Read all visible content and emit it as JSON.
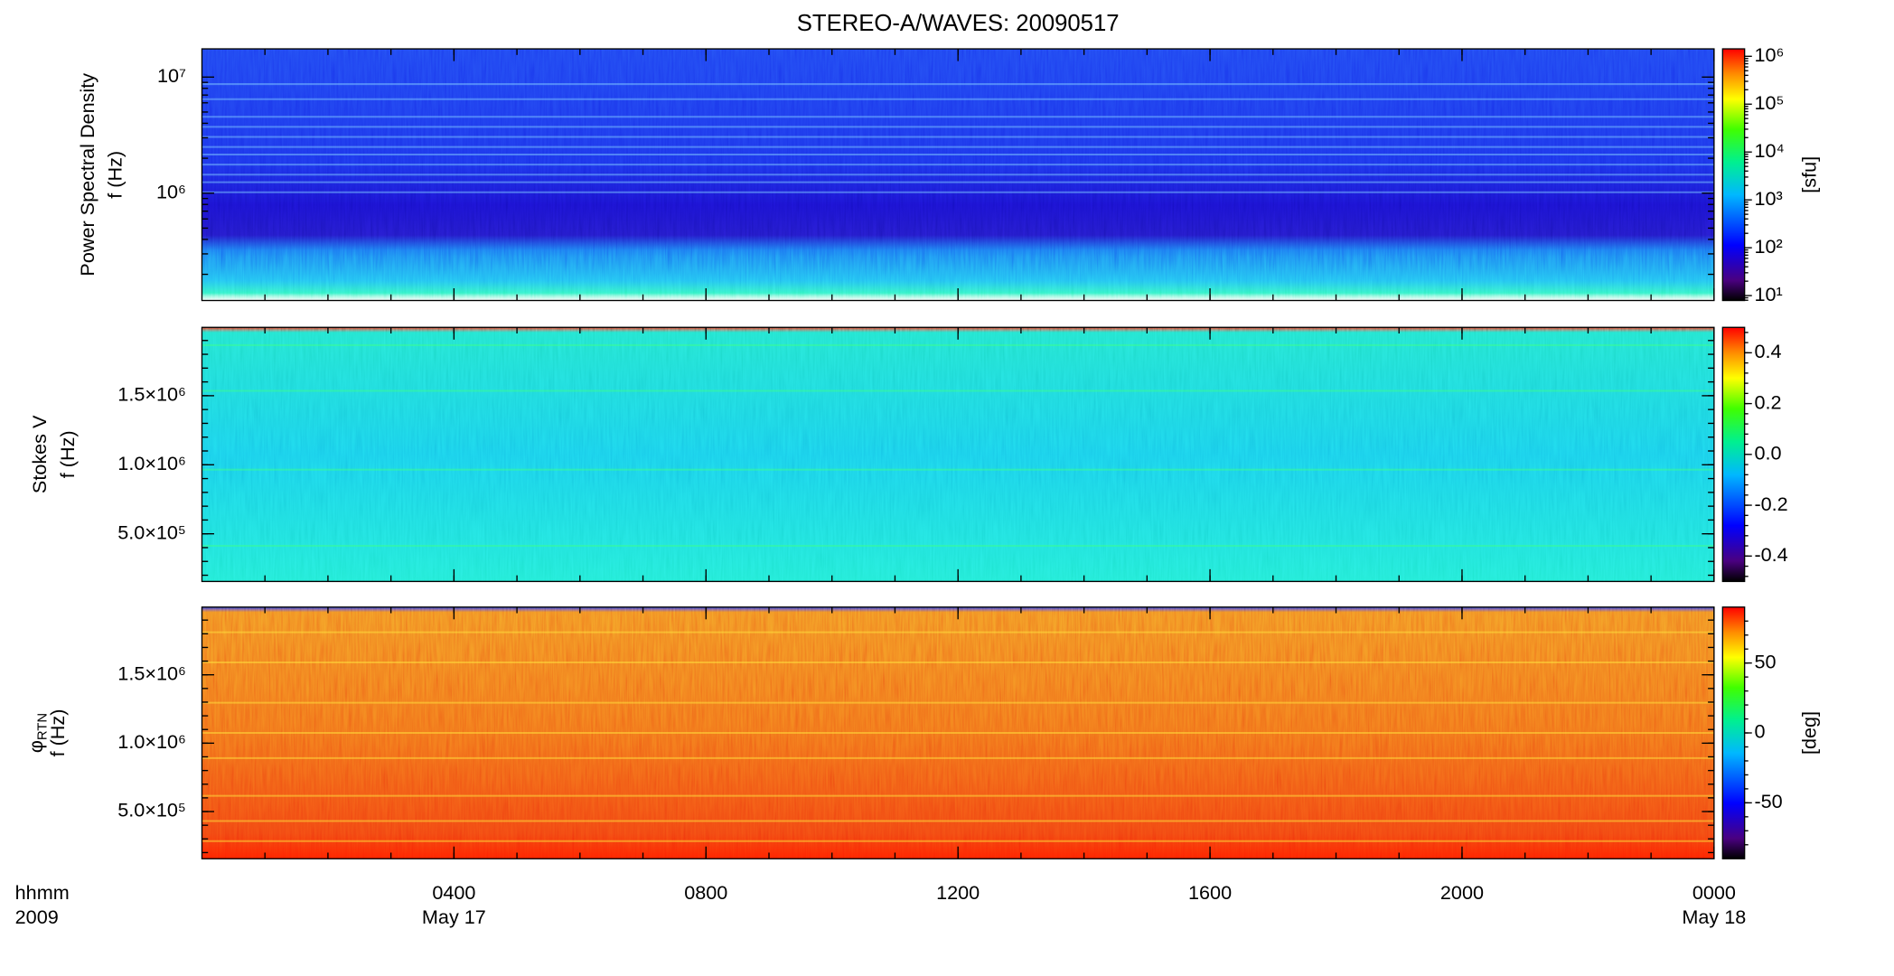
{
  "title": "STEREO-A/WAVES: 20090517",
  "x_axis": {
    "xlim": [
      0,
      24
    ],
    "xticks": [
      {
        "value": 4,
        "label": "0400"
      },
      {
        "value": 8,
        "label": "0800"
      },
      {
        "value": 12,
        "label": "1200"
      },
      {
        "value": 16,
        "label": "1600"
      },
      {
        "value": 20,
        "label": "2000"
      },
      {
        "value": 24,
        "label": "0000"
      }
    ],
    "row_labels": [
      "hhmm",
      "2009"
    ],
    "date_labels": [
      {
        "value": 4,
        "label": "May 17"
      },
      {
        "value": 24,
        "label": "May 18"
      }
    ]
  },
  "chart_data": [
    {
      "type": "spectrogram",
      "ylabel": [
        "Power Spectral Density",
        "f (Hz)"
      ],
      "ylog": true,
      "ylim": [
        119000,
        17500000
      ],
      "yticks": [
        {
          "value": 1000000,
          "label": "10⁶"
        },
        {
          "value": 10000000,
          "label": "10⁷"
        }
      ],
      "colormap": "rainbow",
      "colorbar": {
        "label": "[sfu]",
        "log": true,
        "lim": [
          7.9,
          1430000
        ],
        "ticks": [
          {
            "value": 10,
            "label": "10¹"
          },
          {
            "value": 100,
            "label": "10²"
          },
          {
            "value": 1000,
            "label": "10³"
          },
          {
            "value": 10000,
            "label": "10⁴"
          },
          {
            "value": 100000,
            "label": "10⁵"
          },
          {
            "value": 1000000,
            "label": "10⁶"
          }
        ]
      }
    },
    {
      "type": "spectrogram",
      "ylabel": [
        "Stokes V",
        "f (Hz)"
      ],
      "ylog": false,
      "ylim": [
        155000,
        1995000
      ],
      "yticks": [
        {
          "value": 500000,
          "label": "5.0×10⁵"
        },
        {
          "value": 1000000,
          "label": "1.0×10⁶"
        },
        {
          "value": 1500000,
          "label": "1.5×10⁶"
        }
      ],
      "colormap": "rainbow",
      "colorbar": {
        "log": false,
        "lim": [
          -0.5,
          0.5
        ],
        "ticks": [
          -0.4,
          -0.2,
          {
            "value": 0,
            "label": "0.0"
          },
          0.2,
          0.4
        ]
      }
    },
    {
      "type": "spectrogram",
      "ylabel": [
        "φ",
        "f (Hz)"
      ],
      "ylabel_subscript": "RTN",
      "ylog": false,
      "ylim": [
        155000,
        1995000
      ],
      "yticks": [
        {
          "value": 500000,
          "label": "5.0×10⁵"
        },
        {
          "value": 1000000,
          "label": "1.0×10⁶"
        },
        {
          "value": 1500000,
          "label": "1.5×10⁶"
        }
      ],
      "colormap": "rainbow",
      "colorbar": {
        "label": "[deg]",
        "log": false,
        "lim": [
          -90,
          90
        ],
        "ticks": [
          -50,
          0,
          50
        ]
      }
    }
  ]
}
